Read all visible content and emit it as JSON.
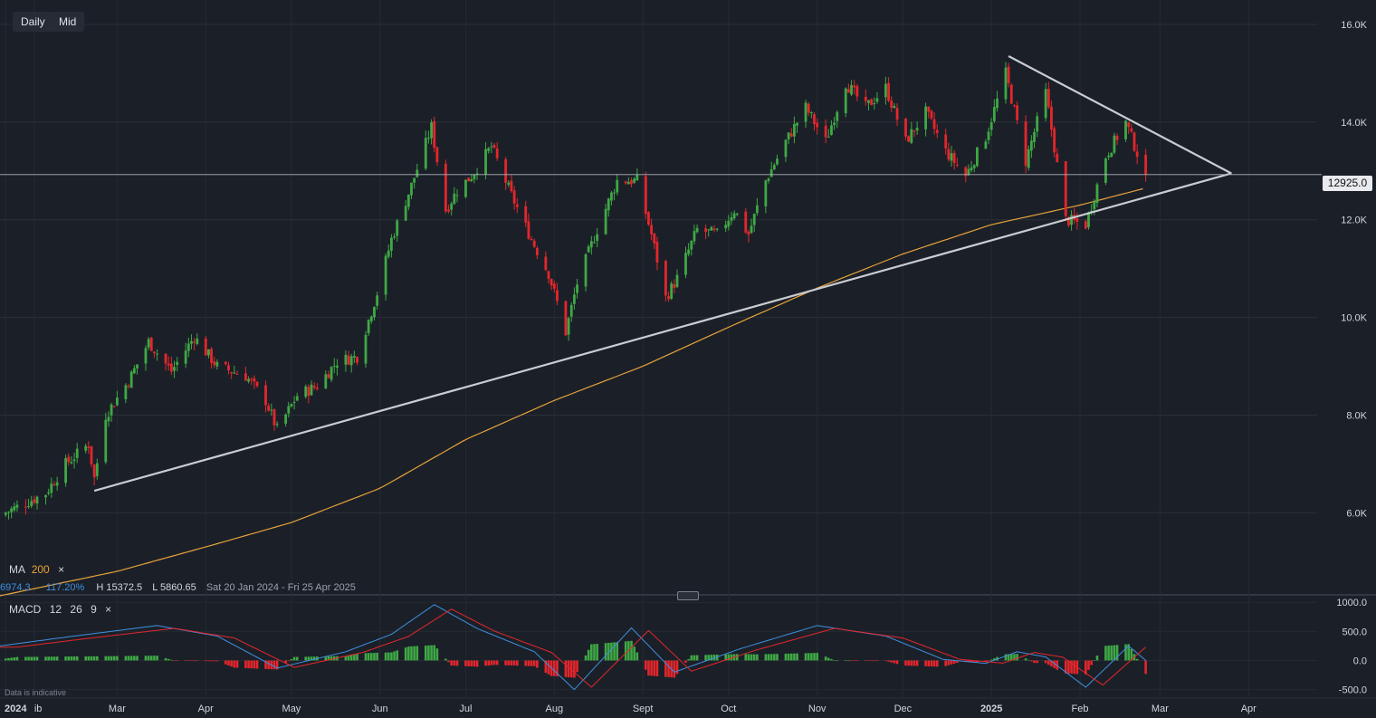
{
  "toolbar": {
    "interval_label": "Daily",
    "price_type_label": "Mid"
  },
  "overlay_legend": {
    "label": "MA",
    "period": "200",
    "close": "×"
  },
  "stats_bar": {
    "change_value": "6974.3",
    "change_percent": "117.20%",
    "high": "H 15372.5",
    "low": "L 5860.65",
    "range": "Sat 20 Jan 2024 - Fri 25 Apr 2025"
  },
  "macd_legend": {
    "label": "MACD",
    "fast": "12",
    "slow": "26",
    "signal": "9",
    "close": "×"
  },
  "disclaimer": "Data is indicative",
  "colors": {
    "background": "#1b2028",
    "up_candle": "#3fa845",
    "down_candle": "#e5262c",
    "ma_line": "#e7a23a",
    "trendline": "#c9ccd2",
    "macd_line": "#3f8fe0",
    "signal_line": "#e5262c"
  },
  "chart_data": {
    "type": "candlestick",
    "symbol_current_price": 12925.0,
    "current_price_label": "12925.0",
    "y_axis": {
      "range": [
        4300,
        16500
      ],
      "ticks": [
        6000,
        8000,
        10000,
        12000,
        14000,
        16000
      ],
      "tick_labels": [
        "6.0K",
        "8.0K",
        "10.0K",
        "12.0K",
        "14.0K",
        "16.0K"
      ]
    },
    "x_axis": {
      "range": [
        "2024-01-20",
        "2025-04-25"
      ],
      "labels": [
        {
          "text": "2024",
          "date": "2024-01-22"
        },
        {
          "text": "ib",
          "date": "2024-02-01"
        },
        {
          "text": "Mar",
          "date": "2024-03-01"
        },
        {
          "text": "Apr",
          "date": "2024-04-01"
        },
        {
          "text": "May",
          "date": "2024-05-01"
        },
        {
          "text": "Jun",
          "date": "2024-06-01"
        },
        {
          "text": "Jul",
          "date": "2024-07-01"
        },
        {
          "text": "Aug",
          "date": "2024-08-01"
        },
        {
          "text": "Sept",
          "date": "2024-09-01"
        },
        {
          "text": "Oct",
          "date": "2024-10-01"
        },
        {
          "text": "Nov",
          "date": "2024-11-01"
        },
        {
          "text": "Dec",
          "date": "2024-12-01"
        },
        {
          "text": "2025",
          "date": "2025-01-01"
        },
        {
          "text": "Feb",
          "date": "2025-02-01"
        },
        {
          "text": "Mar",
          "date": "2025-03-01"
        },
        {
          "text": "Apr",
          "date": "2025-04-01"
        }
      ]
    },
    "price_waypoints": [
      [
        "2024-01-20",
        5950
      ],
      [
        "2024-02-05",
        6400
      ],
      [
        "2024-02-12",
        7000
      ],
      [
        "2024-02-20",
        7400
      ],
      [
        "2024-02-22",
        6700
      ],
      [
        "2024-02-26",
        8000
      ],
      [
        "2024-03-05",
        8700
      ],
      [
        "2024-03-12",
        9500
      ],
      [
        "2024-03-20",
        8900
      ],
      [
        "2024-03-28",
        9600
      ],
      [
        "2024-04-05",
        9000
      ],
      [
        "2024-04-15",
        8800
      ],
      [
        "2024-04-22",
        8300
      ],
      [
        "2024-04-26",
        7700
      ],
      [
        "2024-05-03",
        8400
      ],
      [
        "2024-05-10",
        8600
      ],
      [
        "2024-05-17",
        9100
      ],
      [
        "2024-05-24",
        9200
      ],
      [
        "2024-05-31",
        10500
      ],
      [
        "2024-06-05",
        11600
      ],
      [
        "2024-06-12",
        12700
      ],
      [
        "2024-06-19",
        13900
      ],
      [
        "2024-06-24",
        12200
      ],
      [
        "2024-06-28",
        12600
      ],
      [
        "2024-07-03",
        12900
      ],
      [
        "2024-07-10",
        13500
      ],
      [
        "2024-07-17",
        12500
      ],
      [
        "2024-07-24",
        11600
      ],
      [
        "2024-07-30",
        10900
      ],
      [
        "2024-08-05",
        9700
      ],
      [
        "2024-08-09",
        10700
      ],
      [
        "2024-08-16",
        11800
      ],
      [
        "2024-08-23",
        12800
      ],
      [
        "2024-08-30",
        12800
      ],
      [
        "2024-09-04",
        11700
      ],
      [
        "2024-09-09",
        10400
      ],
      [
        "2024-09-13",
        10800
      ],
      [
        "2024-09-20",
        11800
      ],
      [
        "2024-09-27",
        11700
      ],
      [
        "2024-10-03",
        12200
      ],
      [
        "2024-10-08",
        11700
      ],
      [
        "2024-10-14",
        12800
      ],
      [
        "2024-10-21",
        13600
      ],
      [
        "2024-10-28",
        14300
      ],
      [
        "2024-11-04",
        13600
      ],
      [
        "2024-11-11",
        14800
      ],
      [
        "2024-11-18",
        14300
      ],
      [
        "2024-11-25",
        14700
      ],
      [
        "2024-12-02",
        13600
      ],
      [
        "2024-12-09",
        14200
      ],
      [
        "2024-12-16",
        13400
      ],
      [
        "2024-12-23",
        12900
      ],
      [
        "2024-12-30",
        13700
      ],
      [
        "2025-01-06",
        15000
      ],
      [
        "2025-01-13",
        13200
      ],
      [
        "2025-01-20",
        14600
      ],
      [
        "2025-01-27",
        12000
      ],
      [
        "2025-02-03",
        11900
      ],
      [
        "2025-02-10",
        13300
      ],
      [
        "2025-02-17",
        14000
      ],
      [
        "2025-02-24",
        12900
      ]
    ],
    "ma200_waypoints": [
      [
        "2024-01-20",
        4300
      ],
      [
        "2024-03-01",
        4800
      ],
      [
        "2024-04-01",
        5300
      ],
      [
        "2024-05-01",
        5800
      ],
      [
        "2024-06-01",
        6500
      ],
      [
        "2024-07-01",
        7500
      ],
      [
        "2024-08-01",
        8300
      ],
      [
        "2024-09-01",
        9000
      ],
      [
        "2024-10-01",
        9800
      ],
      [
        "2024-11-01",
        10600
      ],
      [
        "2024-12-01",
        11300
      ],
      [
        "2025-01-01",
        11900
      ],
      [
        "2025-02-01",
        12300
      ],
      [
        "2025-02-24",
        12650
      ]
    ],
    "trendlines": [
      {
        "points": [
          [
            "2024-02-22",
            6450
          ],
          [
            "2025-03-26",
            12950
          ]
        ]
      },
      {
        "points": [
          [
            "2025-01-07",
            15350
          ],
          [
            "2025-03-26",
            12950
          ]
        ]
      }
    ],
    "macd": {
      "y_range": [
        -600,
        1050
      ],
      "ticks": [
        1000,
        500,
        0,
        -500
      ],
      "tick_labels": [
        "1000.0",
        "500.0",
        "0.0",
        "-500.0"
      ],
      "macd_waypoints": [
        [
          "2024-01-20",
          250
        ],
        [
          "2024-02-15",
          420
        ],
        [
          "2024-03-15",
          600
        ],
        [
          "2024-04-05",
          420
        ],
        [
          "2024-04-26",
          -130
        ],
        [
          "2024-05-20",
          150
        ],
        [
          "2024-06-05",
          450
        ],
        [
          "2024-06-20",
          960
        ],
        [
          "2024-07-05",
          550
        ],
        [
          "2024-07-25",
          150
        ],
        [
          "2024-08-08",
          -500
        ],
        [
          "2024-08-28",
          560
        ],
        [
          "2024-09-12",
          -200
        ],
        [
          "2024-10-05",
          200
        ],
        [
          "2024-11-01",
          600
        ],
        [
          "2024-11-25",
          420
        ],
        [
          "2024-12-15",
          20
        ],
        [
          "2024-12-30",
          -50
        ],
        [
          "2025-01-10",
          150
        ],
        [
          "2025-01-20",
          60
        ],
        [
          "2025-02-03",
          -460
        ],
        [
          "2025-02-18",
          250
        ],
        [
          "2025-02-24",
          0
        ]
      ],
      "signal_lag_days": 6
    }
  }
}
